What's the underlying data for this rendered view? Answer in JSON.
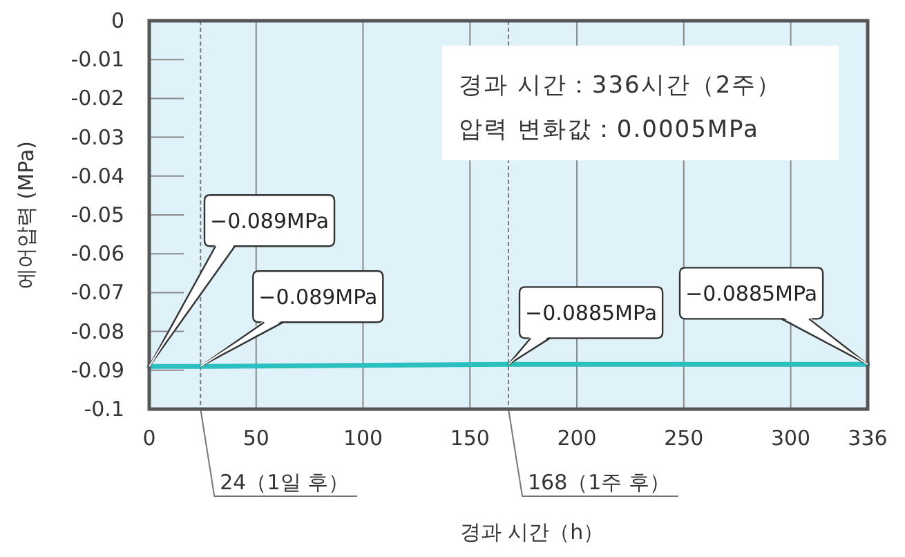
{
  "chart_data": {
    "type": "line",
    "xlabel": "경과 시간（h）",
    "ylabel": "에어압력 (MPa)",
    "x": [
      0,
      24,
      168,
      336
    ],
    "series": [
      {
        "color": "#2bbfbf",
        "values": [
          -0.089,
          -0.089,
          -0.0885,
          -0.0885
        ]
      }
    ],
    "xlim": [
      0,
      336
    ],
    "xticks": [
      0,
      50,
      100,
      150,
      200,
      250,
      300,
      336
    ],
    "ylim": [
      -0.1,
      0
    ],
    "yticks": [
      0,
      -0.01,
      -0.02,
      -0.03,
      -0.04,
      -0.05,
      -0.06,
      -0.07,
      -0.08,
      -0.09,
      -0.1
    ],
    "grid": "x",
    "marker": "none",
    "line_style": "solid",
    "ref_lines": [
      {
        "axis": "x",
        "value": 24,
        "label": "24（1일 후）",
        "line_style": "dashed"
      },
      {
        "axis": "x",
        "value": 168,
        "label": "168（1주 후）",
        "line_style": "dashed"
      }
    ],
    "annotations": [
      {
        "text": "−0.089MPa",
        "x": 0,
        "y": -0.089
      },
      {
        "text": "−0.089MPa",
        "x": 24,
        "y": -0.089
      },
      {
        "text": "−0.0885MPa",
        "x": 168,
        "y": -0.0885
      },
      {
        "text": "−0.0885MPa",
        "x": 336,
        "y": -0.0885
      },
      "경과 시간：336시간（2주）",
      "압력 변화값：0.0005MPa"
    ]
  }
}
